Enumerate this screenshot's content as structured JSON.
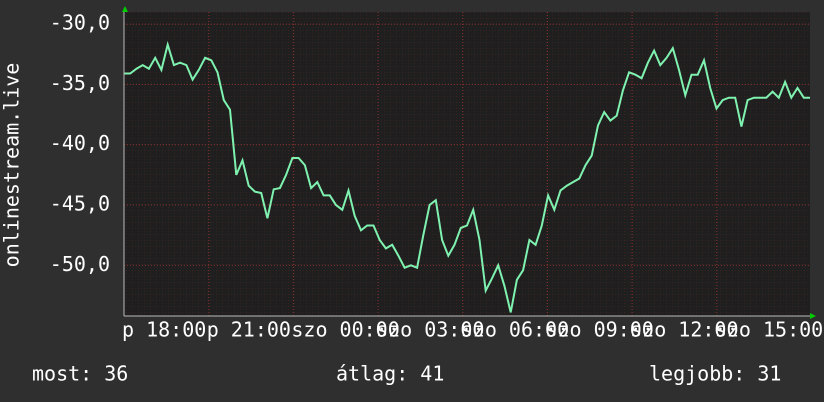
{
  "chart_data": {
    "type": "line",
    "ylabel": "onlinestream.live",
    "color": "#7ff2b0",
    "values": [
      -34.1,
      -34.1,
      -33.7,
      -33.4,
      -33.7,
      -32.8,
      -33.8,
      -31.7,
      -33.4,
      -33.2,
      -33.4,
      -34.6,
      -33.8,
      -32.8,
      -33.0,
      -34.0,
      -36.3,
      -37.1,
      -42.5,
      -41.3,
      -43.4,
      -43.9,
      -44.0,
      -46.1,
      -43.7,
      -43.6,
      -42.5,
      -41.1,
      -41.1,
      -41.7,
      -43.6,
      -43.1,
      -44.2,
      -44.2,
      -45.0,
      -45.4,
      -43.8,
      -45.9,
      -47.1,
      -46.7,
      -46.7,
      -47.9,
      -48.6,
      -48.3,
      -49.2,
      -50.2,
      -50.0,
      -50.2,
      -47.5,
      -45.0,
      -44.6,
      -47.9,
      -49.2,
      -48.3,
      -46.9,
      -46.7,
      -45.4,
      -47.9,
      -52.1,
      -51.1,
      -50.0,
      -51.7,
      -53.9,
      -51.2,
      -50.4,
      -47.9,
      -48.3,
      -46.7,
      -44.2,
      -45.4,
      -43.8,
      -43.4,
      -43.1,
      -42.8,
      -41.7,
      -40.9,
      -38.4,
      -37.3,
      -38.0,
      -37.6,
      -35.5,
      -34.0,
      -34.2,
      -34.5,
      -33.2,
      -32.2,
      -33.4,
      -32.8,
      -32.0,
      -33.8,
      -35.9,
      -34.2,
      -34.2,
      -33.0,
      -35.3,
      -37.0,
      -36.3,
      -36.1,
      -36.1,
      -38.5,
      -36.3,
      -36.1,
      -36.1,
      -36.1,
      -35.6,
      -36.1,
      -34.8,
      -36.1,
      -35.3,
      -36.1,
      -36.1
    ],
    "ylim": [
      -54.2,
      -29.0
    ],
    "yticks": [
      {
        "value": -30,
        "label": "-30,0"
      },
      {
        "value": -35,
        "label": "-35,0"
      },
      {
        "value": -40,
        "label": "-40,0"
      },
      {
        "value": -45,
        "label": "-45,0"
      },
      {
        "value": -50,
        "label": "-50,0"
      }
    ],
    "xlim": [
      18,
      42.3
    ],
    "xticks": [
      {
        "value": 18,
        "label": "p 18:00"
      },
      {
        "value": 21,
        "label": "p 21:00"
      },
      {
        "value": 24,
        "label": "szo 00:00"
      },
      {
        "value": 27,
        "label": "szo 03:00"
      },
      {
        "value": 30,
        "label": "szo 06:00"
      },
      {
        "value": 33,
        "label": "szo 09:00"
      },
      {
        "value": 36,
        "label": "szo 12:00"
      },
      {
        "value": 39,
        "label": "szo 15:00"
      }
    ],
    "grid": true
  },
  "summary": [
    "most: 36",
    "átlag: 41",
    "legjobb: 31"
  ]
}
